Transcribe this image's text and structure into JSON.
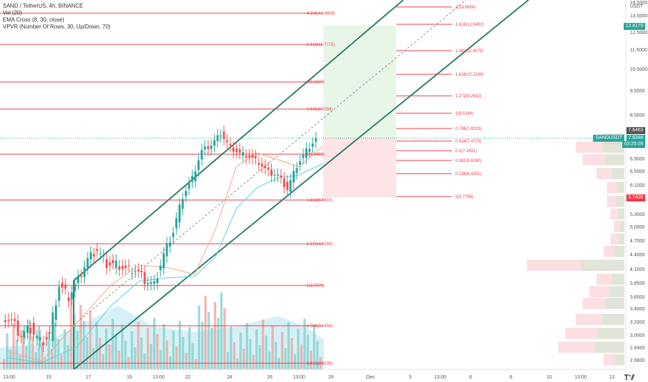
{
  "legend": {
    "symbol": "SAND / TetherUS, 4h, BINANCE",
    "vol": "Vol (20)",
    "ema": "EMA Cross (8, 30, close)",
    "vpvr": "VPVR (Number Of Rows, 30, Up/Down, 70)"
  },
  "price_axis": {
    "currency": "USDT",
    "ticks": [
      "14.5000",
      "13.5000",
      "12.5000",
      "11.5000",
      "10.5000",
      "9.5000",
      "8.5000",
      "7.6000",
      "6.9000",
      "6.5000",
      "6.1000",
      "5.7000",
      "5.3000",
      "5.0000",
      "4.7000",
      "4.4000",
      "4.1000",
      "3.8500",
      "3.6000",
      "3.4000",
      "3.2000",
      "3.0000",
      "2.8400",
      "2.6800"
    ]
  },
  "time_axis": {
    "ticks": [
      "13:00",
      "15",
      "17",
      "19",
      "13:00",
      "22",
      "24",
      "26",
      "13:00",
      "29",
      "Dec",
      "3",
      "13:00",
      "6",
      "8",
      "10",
      "13:00",
      "13"
    ]
  },
  "tags": {
    "top_price": "12.8179",
    "current_price": "7.6463",
    "sand_label": "SANDUSDT",
    "sand_price": "7.6348",
    "countdown": "03:25:09",
    "low_price": "5.7409"
  },
  "fib_levels_left": [
    "4.236(13.6609)",
    "3.618(11.7773)",
    "3(9.8937)",
    "2.618(8.7294)",
    "2(6.8458)",
    "1.618(5.6815)",
    "1.272(4.6269)",
    "1(3.7979)",
    "0.786(3.1456)",
    "0.618(2.6336)"
  ],
  "fib_levels_right": [
    "2(13.9954)",
    "1.618(12.9492)",
    "1.382(11.4075)",
    "1.618(10.2108)",
    "1.272(9.2632)",
    "1(8.5184)",
    "0.786(7.9323)",
    "0.618(7.4723)",
    "0.5(7.1491)",
    "0.382(6.8260)",
    "0.236(6.4261)",
    "0(5.7798)"
  ],
  "colors": {
    "up": "#26a69a",
    "down": "#ef5350",
    "fib": "#f23645",
    "channel": "#2e7d6b",
    "ema_fast": "#f7a589",
    "ema_slow": "#5ad0e0"
  },
  "chart_data": {
    "type": "candlestick",
    "symbol": "SAND / TetherUS",
    "interval": "4h",
    "ylim": [
      2.55,
      14.6
    ],
    "scale": "log",
    "closes_approx": [
      3.3,
      3.2,
      3.0,
      3.1,
      2.9,
      3.0,
      3.8,
      3.6,
      3.9,
      4.3,
      4.5,
      4.2,
      4.2,
      4.1,
      4.1,
      3.9,
      3.8,
      4.4,
      4.9,
      5.8,
      6.3,
      7.2,
      7.4,
      7.8,
      7.3,
      7.1,
      7.0,
      6.8,
      6.5,
      6.4,
      6.0,
      6.7,
      7.2,
      7.6
    ]
  }
}
